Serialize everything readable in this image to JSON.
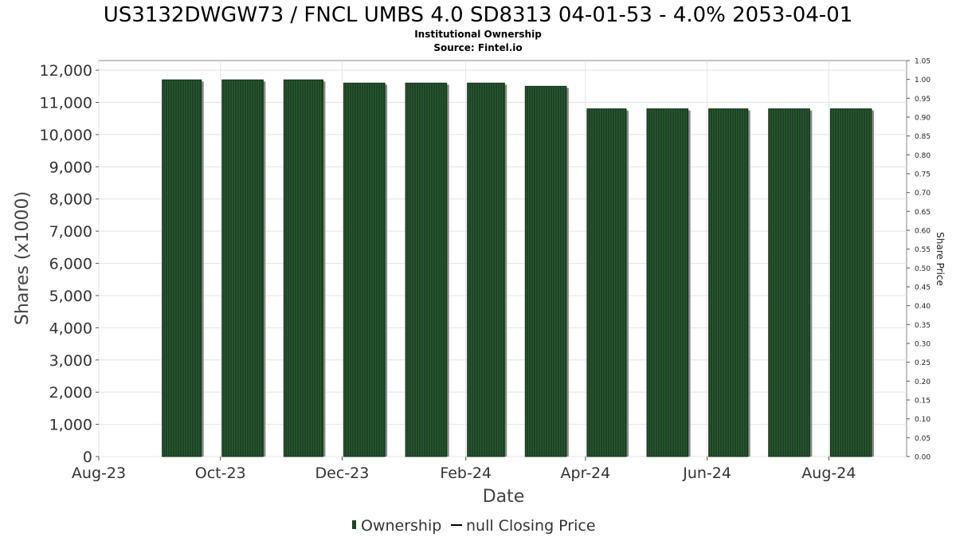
{
  "chart_data": {
    "type": "bar",
    "title": "US3132DWGW73 / FNCL UMBS 4.0 SD8313 04-01-53 - 4.0% 2053-04-01",
    "subtitle_lines": [
      "Institutional Ownership",
      "Source: Fintel.io"
    ],
    "xlabel": "Date",
    "ylabel": "Shares (x1000)",
    "y2label": "Share Price",
    "ylim": [
      0,
      12300
    ],
    "y2lim": [
      0,
      1.05
    ],
    "y_ticks": [
      0,
      1000,
      2000,
      3000,
      4000,
      5000,
      6000,
      7000,
      8000,
      9000,
      10000,
      11000,
      12000
    ],
    "y_tick_labels": [
      "0",
      "1,000",
      "2,000",
      "3,000",
      "4,000",
      "5,000",
      "6,000",
      "7,000",
      "8,000",
      "9,000",
      "10,000",
      "11,000",
      "12,000"
    ],
    "y2_tick_labels": [
      "0.00",
      "0.05",
      "0.10",
      "0.15",
      "0.20",
      "0.25",
      "0.30",
      "0.35",
      "0.40",
      "0.45",
      "0.50",
      "0.55",
      "0.60",
      "0.65",
      "0.70",
      "0.75",
      "0.80",
      "0.85",
      "0.90",
      "0.95",
      "1.00",
      "1.05"
    ],
    "x_ticks": [
      "Aug-23",
      "Oct-23",
      "Dec-23",
      "Feb-24",
      "Apr-24",
      "Jun-24",
      "Aug-24"
    ],
    "x_range": [
      "2023-08-01",
      "2024-09-09"
    ],
    "categories": [
      "2023-09-01",
      "2023-10-01",
      "2023-11-01",
      "2023-12-01",
      "2024-01-01",
      "2024-02-01",
      "2024-03-01",
      "2024-04-01",
      "2024-05-01",
      "2024-06-01",
      "2024-07-01",
      "2024-08-01"
    ],
    "series": [
      {
        "name": "Ownership",
        "values": [
          11700,
          11700,
          11700,
          11600,
          11600,
          11600,
          11500,
          10800,
          10800,
          10800,
          10800,
          10800
        ],
        "color": "#1c4424"
      }
    ],
    "legend": {
      "position": "bottom",
      "entries": [
        {
          "label": "Ownership",
          "color": "#1c4424",
          "marker": "bar"
        },
        {
          "label": "null Closing Price",
          "color": "#000000",
          "marker": "line"
        }
      ]
    },
    "grid": true
  }
}
